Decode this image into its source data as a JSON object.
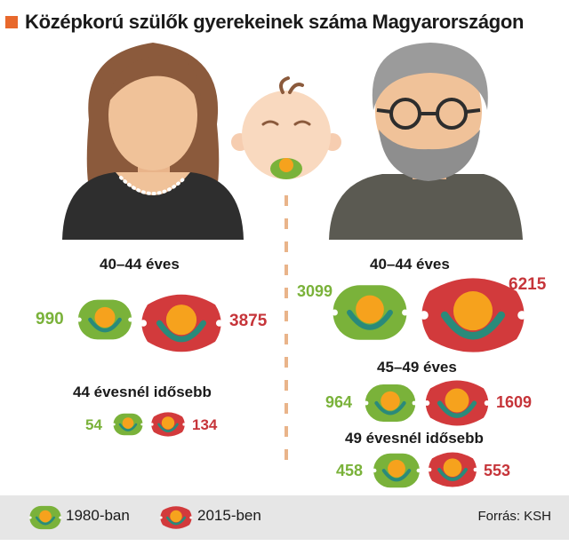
{
  "title": "Középkorú szülők gyerekeinek száma Magyarországon",
  "colors": {
    "accent": "#e8682c",
    "green": "#7ab23a",
    "red": "#d23a3c"
  },
  "women": {
    "groups": [
      {
        "label": "40–44 éves",
        "v1980": "990",
        "v2015": "3875"
      },
      {
        "label": "44 évesnél idősebb",
        "v1980": "54",
        "v2015": "134"
      }
    ]
  },
  "men": {
    "groups": [
      {
        "label": "40–44 éves",
        "v1980": "3099",
        "v2015": "6215"
      },
      {
        "label": "45–49 éves",
        "v1980": "964",
        "v2015": "1609"
      },
      {
        "label": "49 évesnél idősebb",
        "v1980": "458",
        "v2015": "553"
      }
    ]
  },
  "legend": {
    "item1980": "1980-ban",
    "item2015": "2015-ben"
  },
  "source": "Forrás: KSH"
}
